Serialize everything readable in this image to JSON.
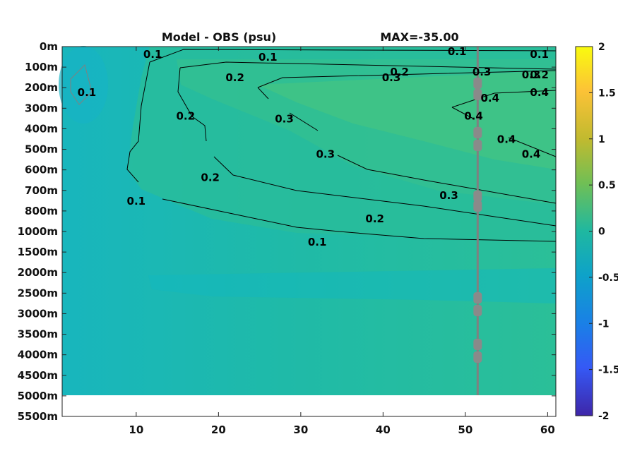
{
  "chart_data": {
    "type": "heatmap",
    "title_left": "Model - OBS (psu)",
    "title_right": "MAX=-35.00",
    "x_ticks": [
      "10",
      "20",
      "30",
      "40",
      "50",
      "60"
    ],
    "x_tick_values": [
      10,
      20,
      30,
      40,
      50,
      60
    ],
    "xlim": [
      1,
      61
    ],
    "y_ticks": [
      "0m",
      "100m",
      "200m",
      "300m",
      "400m",
      "500m",
      "600m",
      "700m",
      "800m",
      "1000m",
      "1500m",
      "2000m",
      "2500m",
      "3000m",
      "3500m",
      "4000m",
      "4500m",
      "5000m",
      "5500m"
    ],
    "colorbar_ticks": [
      "2",
      "1.5",
      "1",
      "0.5",
      "0",
      "-0.5",
      "-1",
      "-1.5",
      "-2"
    ],
    "colorbar_values": [
      2,
      1.5,
      1,
      0.5,
      0,
      -0.5,
      -1,
      -1.5,
      -2
    ],
    "clim": [
      -2,
      2
    ],
    "colormap": "parula",
    "contour_labels": [
      {
        "text": "0.1",
        "x": 4,
        "depth": "200m"
      },
      {
        "text": "0.1",
        "x": 12,
        "depth": "0m"
      },
      {
        "text": "0.1",
        "x": 26,
        "depth": "0m"
      },
      {
        "text": "0.1",
        "x": 49,
        "depth": "0m"
      },
      {
        "text": "0.1",
        "x": 59,
        "depth": "0m"
      },
      {
        "text": "0.2",
        "x": 22,
        "depth": "100m"
      },
      {
        "text": "0.2",
        "x": 42,
        "depth": "100m"
      },
      {
        "text": "0.2",
        "x": 59,
        "depth": "100m"
      },
      {
        "text": "0.3",
        "x": 41,
        "depth": "100m"
      },
      {
        "text": "0.3",
        "x": 52,
        "depth": "100m"
      },
      {
        "text": "0.3",
        "x": 58,
        "depth": "100m"
      },
      {
        "text": "0.4",
        "x": 53,
        "depth": "200m"
      },
      {
        "text": "0.4",
        "x": 59,
        "depth": "200m"
      },
      {
        "text": "0.2",
        "x": 16,
        "depth": "300m"
      },
      {
        "text": "0.3",
        "x": 28,
        "depth": "300m"
      },
      {
        "text": "0.3",
        "x": 33,
        "depth": "500m"
      },
      {
        "text": "0.2",
        "x": 19,
        "depth": "600m"
      },
      {
        "text": "0.4",
        "x": 55,
        "depth": "400m"
      },
      {
        "text": "0.4",
        "x": 58,
        "depth": "500m"
      },
      {
        "text": "0.4",
        "x": 51,
        "depth": "300m"
      },
      {
        "text": "0.1",
        "x": 10,
        "depth": "700m"
      },
      {
        "text": "0.3",
        "x": 48,
        "depth": "700m"
      },
      {
        "text": "0.2",
        "x": 39,
        "depth": "800m"
      },
      {
        "text": "0.1",
        "x": 32,
        "depth": "1000m"
      }
    ],
    "profile_marker_x": 51.5
  }
}
